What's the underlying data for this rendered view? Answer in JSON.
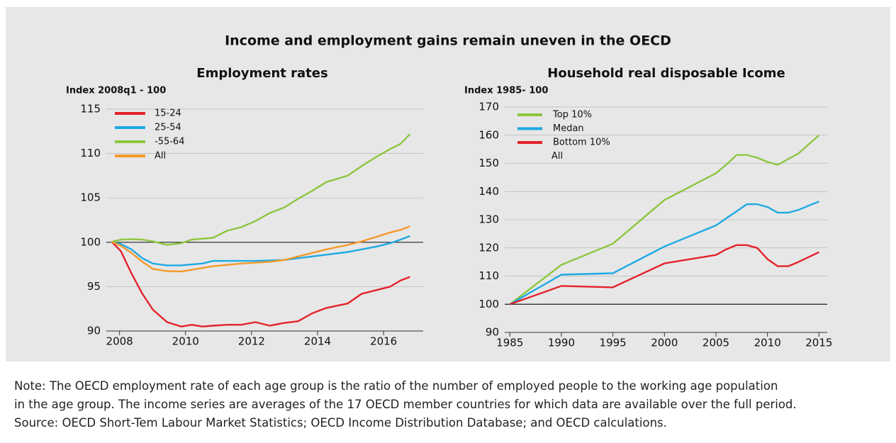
{
  "title": "Income and employment gains remain uneven in the OECD",
  "chart_data": [
    {
      "type": "line",
      "title": "Employment rates",
      "y_label": "Index 2008q1 - 100",
      "xlim": [
        2007.6,
        2017.2
      ],
      "xticks": [
        2008,
        2010,
        2012,
        2014,
        2016
      ],
      "ylim": [
        90,
        115
      ],
      "yticks": [
        90,
        95,
        100,
        105,
        110,
        115
      ],
      "grid": true,
      "reference_line": 100,
      "x": [
        2007.76,
        2008.04,
        2008.36,
        2008.69,
        2009.01,
        2009.44,
        2009.87,
        2010.19,
        2010.51,
        2010.83,
        2011.26,
        2011.69,
        2012.12,
        2012.55,
        2012.98,
        2013.41,
        2013.84,
        2014.27,
        2014.91,
        2015.34,
        2015.77,
        2016.2,
        2016.52,
        2016.8
      ],
      "series": [
        {
          "name": "15-24",
          "color": "#e3232b",
          "values": [
            100.06,
            99,
            96.5,
            94.2,
            92.4,
            91,
            90.5,
            90.7,
            90.5,
            90.6,
            90.7,
            90.7,
            91,
            90.6,
            90.9,
            91.1,
            92,
            92.6,
            93.1,
            94.2,
            94.6,
            95,
            95.7,
            96.1
          ]
        },
        {
          "name": "25-54",
          "color": "#1eaae2",
          "values": [
            100.06,
            99.8,
            99.2,
            98.2,
            97.6,
            97.4,
            97.4,
            97.5,
            97.6,
            97.9,
            97.9,
            97.9,
            97.9,
            97.95,
            98,
            98.2,
            98.4,
            98.6,
            98.9,
            99.2,
            99.5,
            99.9,
            100.3,
            100.7
          ]
        },
        {
          "name": "-55-64",
          "color": "#8dc63f",
          "values": [
            100.06,
            100.3,
            100.35,
            100.3,
            100.1,
            99.7,
            99.9,
            100.3,
            100.4,
            100.5,
            101.3,
            101.7,
            102.4,
            103.3,
            103.9,
            104.9,
            105.8,
            106.8,
            107.5,
            108.6,
            109.6,
            110.5,
            111.1,
            112.2
          ]
        },
        {
          "name": "All",
          "color": "#f39a2b",
          "values": [
            100.06,
            99.6,
            98.8,
            97.8,
            97,
            96.75,
            96.7,
            96.9,
            97.1,
            97.3,
            97.45,
            97.6,
            97.7,
            97.8,
            98,
            98.4,
            98.8,
            99.2,
            99.7,
            100.1,
            100.6,
            101.1,
            101.4,
            101.8
          ]
        }
      ]
    },
    {
      "type": "line",
      "title": "Household real disposable Icome",
      "y_label": "Index 1985- 100",
      "xlim": [
        1984.5,
        2015.8
      ],
      "xticks": [
        1985,
        1990,
        1995,
        2000,
        2005,
        2010,
        2015
      ],
      "ylim": [
        90,
        170
      ],
      "yticks": [
        90,
        100,
        110,
        120,
        130,
        140,
        150,
        160,
        170
      ],
      "grid": true,
      "reference_line": 100,
      "legend_note": "All",
      "x": [
        1985,
        1990,
        1995,
        2000,
        2005,
        2006,
        2007,
        2008,
        2009,
        2010,
        2011,
        2012,
        2013,
        2015
      ],
      "series": [
        {
          "name": "Top 10%",
          "color": "#8dc63f",
          "values": [
            100,
            114,
            121.5,
            137,
            146.5,
            149.5,
            153,
            153,
            152,
            150.5,
            149.5,
            151.5,
            153.5,
            160
          ]
        },
        {
          "name": "Medan",
          "color": "#1eaae2",
          "values": [
            100,
            110.5,
            111,
            120.5,
            128,
            130.5,
            133,
            135.5,
            135.5,
            134.5,
            132.5,
            132.5,
            133.5,
            136.5
          ]
        },
        {
          "name": "Bottom 10%",
          "color": "#e3232b",
          "values": [
            100,
            106.5,
            106,
            114.5,
            117.5,
            119.5,
            121,
            121,
            120,
            116,
            113.5,
            113.5,
            115,
            118.5
          ]
        }
      ]
    }
  ],
  "note": [
    "Note: The OECD employment rate of each age group is the ratio of the number of employed people to the working age population",
    "in the age group. The income series are averages of the 17 OECD member countries for which data are available over the full period.",
    "Source: OECD Short-Tem Labour Market Statistics; OECD Income Distribution Database; and OECD calculations."
  ]
}
